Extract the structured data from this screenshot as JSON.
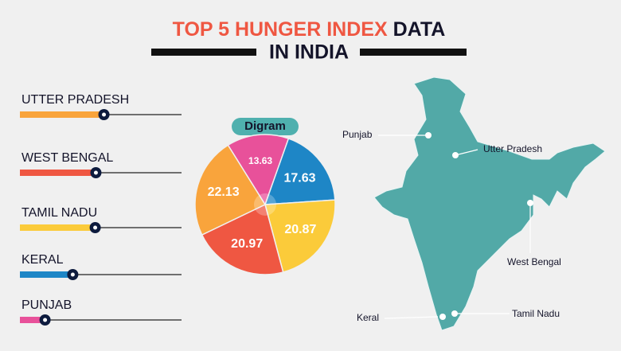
{
  "chart_data": {
    "type": "pie",
    "title": [
      "TOP 5 HUNGER INDEX",
      "DATA",
      "IN INDIA"
    ],
    "subtitle": "Digram",
    "categories": [
      "UTTER PRADESH",
      "WEST BENGAL",
      "TAMIL NADU",
      "KERAL",
      "PUNJAB"
    ],
    "values": [
      22.13,
      20.97,
      20.87,
      17.63,
      13.63
    ],
    "colors": [
      "#f9a43c",
      "#ef5742",
      "#fbcb3a",
      "#1e86c6",
      "#e8519a"
    ],
    "map_labels": [
      "Utter Pradesh",
      "West Bengal",
      "Tamil Nadu",
      "Keral",
      "Punjab"
    ]
  }
}
